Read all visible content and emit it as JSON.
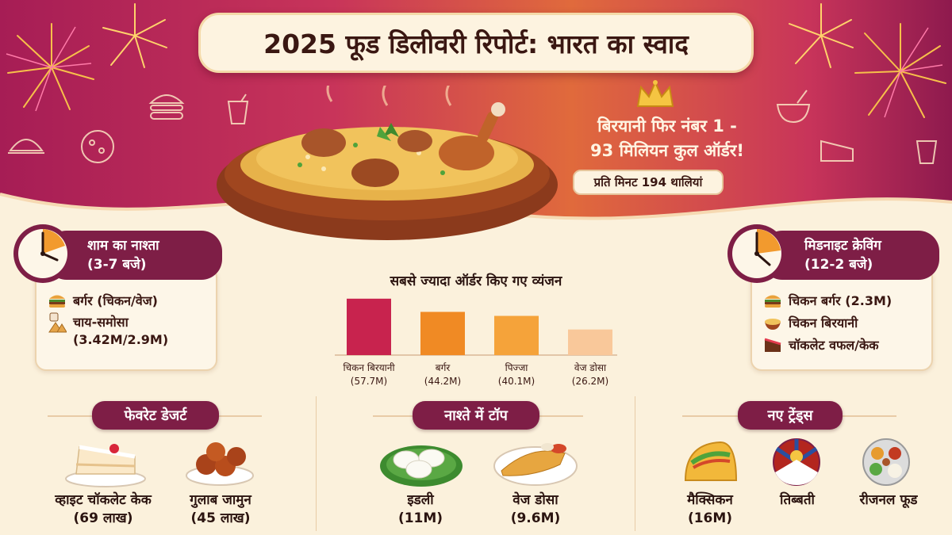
{
  "title": "2025 फूड डिलीवरी रिपोर्ट: भारत का स्वाद",
  "headline": {
    "line1": "बिरयानी फिर नंबर 1 -",
    "line2": "93 मिलियन कुल ऑर्डर!",
    "pill": "प्रति मिनट 194 थालियां"
  },
  "evening": {
    "title": "शाम का नाश्ता",
    "time": "(3-7 बजे)",
    "items": [
      {
        "icon": "burger-icon",
        "label": "बर्गर (चिकन/वेज)"
      },
      {
        "icon": "tea-samosa-icon",
        "label": "चाय-समोसा",
        "sub": "(3.42M/2.9M)"
      }
    ]
  },
  "midnight": {
    "title": "मिडनाइट क्रेविंग",
    "time": "(12-2 बजे)",
    "items": [
      {
        "icon": "burger-icon",
        "label": "चिकन बर्गर (2.3M)"
      },
      {
        "icon": "biryani-bowl-icon",
        "label": "चिकन बिरयानी"
      },
      {
        "icon": "cake-icon",
        "label": "चॉकलेट वफल/केक"
      }
    ]
  },
  "chart_data": {
    "type": "bar",
    "title": "सबसे ज्यादा ऑर्डर किए गए व्यंजन",
    "categories": [
      "चिकन बिरयानी",
      "बर्गर",
      "पिज्जा",
      "वेज डोसा"
    ],
    "values": [
      57.7,
      44.2,
      40.1,
      26.2
    ],
    "value_labels": [
      "(57.7M)",
      "(44.2M)",
      "(40.1M)",
      "(26.2M)"
    ],
    "colors": [
      "#c8234e",
      "#f08a24",
      "#f5a33a",
      "#f9c89a"
    ],
    "xlabel": "",
    "ylabel": "",
    "ylim": [
      0,
      60
    ]
  },
  "dessert": {
    "title": "फेवरेट डेजर्ट",
    "items": [
      {
        "label": "व्हाइट चॉकलेट केक",
        "value": "(69 लाख)"
      },
      {
        "label": "गुलाब जामुन",
        "value": "(45 लाख)"
      }
    ]
  },
  "breakfast": {
    "title": "नाश्ते में टॉप",
    "items": [
      {
        "label": "इडली",
        "value": "(11M)"
      },
      {
        "label": "वेज डोसा",
        "value": "(9.6M)"
      }
    ]
  },
  "trends": {
    "title": "नए ट्रेंड्स",
    "items": [
      {
        "label": "मैक्सिकन",
        "value": "(16M)"
      },
      {
        "label": "तिब्बती",
        "value": ""
      },
      {
        "label": "रीजनल फूड",
        "value": ""
      }
    ]
  },
  "colors": {
    "maroon": "#7e1e46",
    "cream": "#fbf1dc",
    "hero_pink": "#c8345a",
    "hero_orange": "#e06a3c"
  }
}
